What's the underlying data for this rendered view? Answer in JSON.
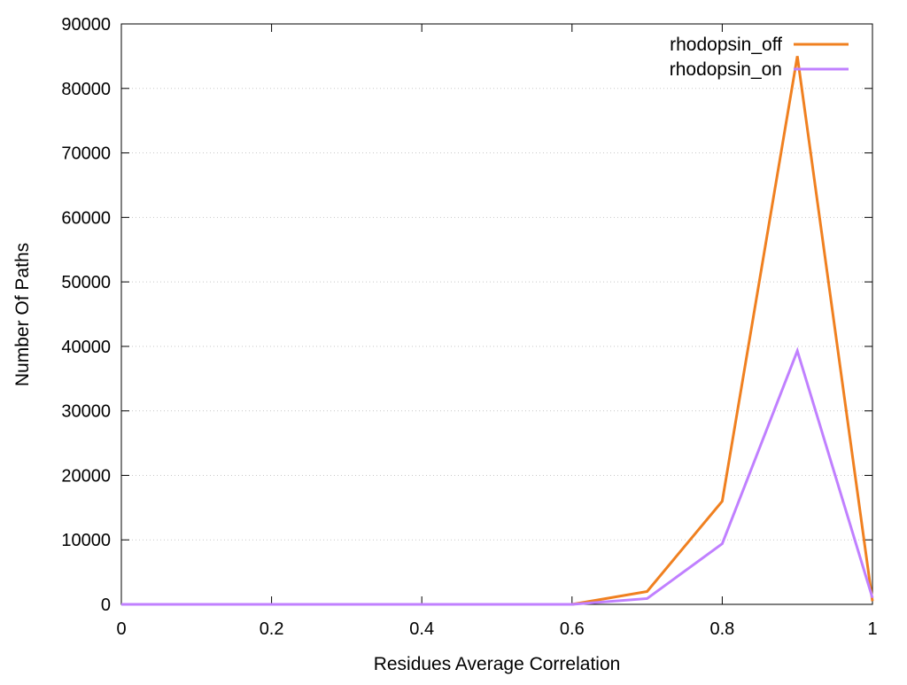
{
  "chart_data": {
    "type": "line",
    "title": "",
    "xlabel": "Residues Average Correlation",
    "ylabel": "Number Of Paths",
    "xlim": [
      0,
      1
    ],
    "ylim": [
      0,
      90000
    ],
    "x_ticks": [
      0,
      0.2,
      0.4,
      0.6,
      0.8,
      1
    ],
    "x_tick_labels": [
      "0",
      "0.2",
      "0.4",
      "0.6",
      "0.8",
      "1"
    ],
    "y_ticks": [
      0,
      10000,
      20000,
      30000,
      40000,
      50000,
      60000,
      70000,
      80000,
      90000
    ],
    "y_tick_labels": [
      "0",
      "10000",
      "20000",
      "30000",
      "40000",
      "50000",
      "60000",
      "70000",
      "80000",
      "90000"
    ],
    "grid": "horizontal dotted",
    "legend_position": "top-right",
    "x": [
      0,
      0.1,
      0.2,
      0.3,
      0.4,
      0.5,
      0.6,
      0.7,
      0.8,
      0.9,
      1.0
    ],
    "series": [
      {
        "name": "rhodopsin_off",
        "color": "#f08020",
        "values": [
          0,
          0,
          0,
          0,
          0,
          0,
          0,
          2000,
          16000,
          85000,
          500
        ]
      },
      {
        "name": "rhodopsin_on",
        "color": "#c080ff",
        "values": [
          0,
          0,
          0,
          0,
          0,
          0,
          0,
          900,
          9400,
          39300,
          1000
        ]
      }
    ]
  }
}
